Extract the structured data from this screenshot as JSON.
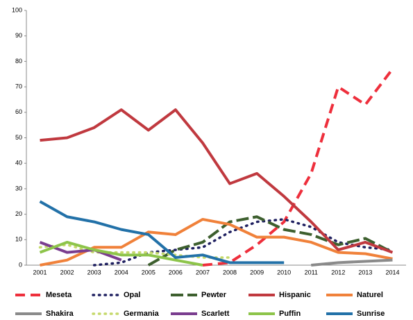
{
  "chart_data": {
    "type": "line",
    "categories": [
      "2001",
      "2002",
      "2003",
      "2004",
      "2005",
      "2006",
      "2007",
      "2008",
      "2009",
      "2010",
      "2011",
      "2012",
      "2013",
      "2014"
    ],
    "ylim": [
      0,
      100
    ],
    "yticks": [
      0,
      10,
      20,
      30,
      40,
      50,
      60,
      70,
      80,
      90,
      100
    ],
    "grid": false,
    "series": [
      {
        "name": "Meseta",
        "color": "#ee2f3c",
        "dash": "dashed",
        "values": [
          null,
          null,
          null,
          null,
          null,
          null,
          0,
          1,
          8,
          17,
          36,
          70,
          63,
          77
        ]
      },
      {
        "name": "Opal",
        "color": "#1f2060",
        "dash": "dotted",
        "values": [
          null,
          null,
          0,
          1,
          5,
          6,
          7,
          13,
          17,
          18,
          15,
          9,
          7,
          6
        ]
      },
      {
        "name": "Pewter",
        "color": "#3d5f2e",
        "dash": "longdash",
        "values": [
          null,
          null,
          null,
          null,
          0,
          6,
          9,
          17,
          19,
          14,
          12,
          8,
          10.5,
          5
        ]
      },
      {
        "name": "Hispanic",
        "color": "#c0393f",
        "dash": "solid",
        "values": [
          49,
          50,
          54,
          61,
          53,
          61,
          48,
          32,
          36,
          27,
          17,
          6,
          9,
          5
        ]
      },
      {
        "name": "Naturel",
        "color": "#f0813a",
        "dash": "solid",
        "values": [
          0,
          2,
          7,
          7,
          13,
          12,
          18,
          16,
          11,
          11,
          9,
          5,
          4.5,
          2.5
        ]
      },
      {
        "name": "Shakira",
        "color": "#8a8a8a",
        "dash": "solid",
        "values": [
          null,
          null,
          null,
          null,
          null,
          null,
          null,
          null,
          null,
          null,
          0,
          1,
          1.5,
          2
        ]
      },
      {
        "name": "Germania",
        "color": "#c5d96b",
        "dash": "dotted",
        "values": [
          7,
          8,
          5,
          5,
          5,
          4,
          3,
          3,
          null,
          null,
          null,
          null,
          null,
          null
        ]
      },
      {
        "name": "Scarlett",
        "color": "#7a3d8f",
        "dash": "solid",
        "values": [
          9,
          5,
          6,
          2,
          null,
          null,
          null,
          null,
          null,
          null,
          null,
          null,
          null,
          null
        ]
      },
      {
        "name": "Puffin",
        "color": "#8dc44a",
        "dash": "solid",
        "values": [
          5,
          9,
          6,
          4,
          4,
          2,
          0,
          null,
          null,
          null,
          null,
          null,
          null,
          null
        ]
      },
      {
        "name": "Sunrise",
        "color": "#2271a8",
        "dash": "solid",
        "values": [
          25,
          19,
          17,
          14,
          12,
          3,
          4,
          1,
          1,
          1,
          null,
          null,
          null,
          null
        ]
      }
    ]
  }
}
